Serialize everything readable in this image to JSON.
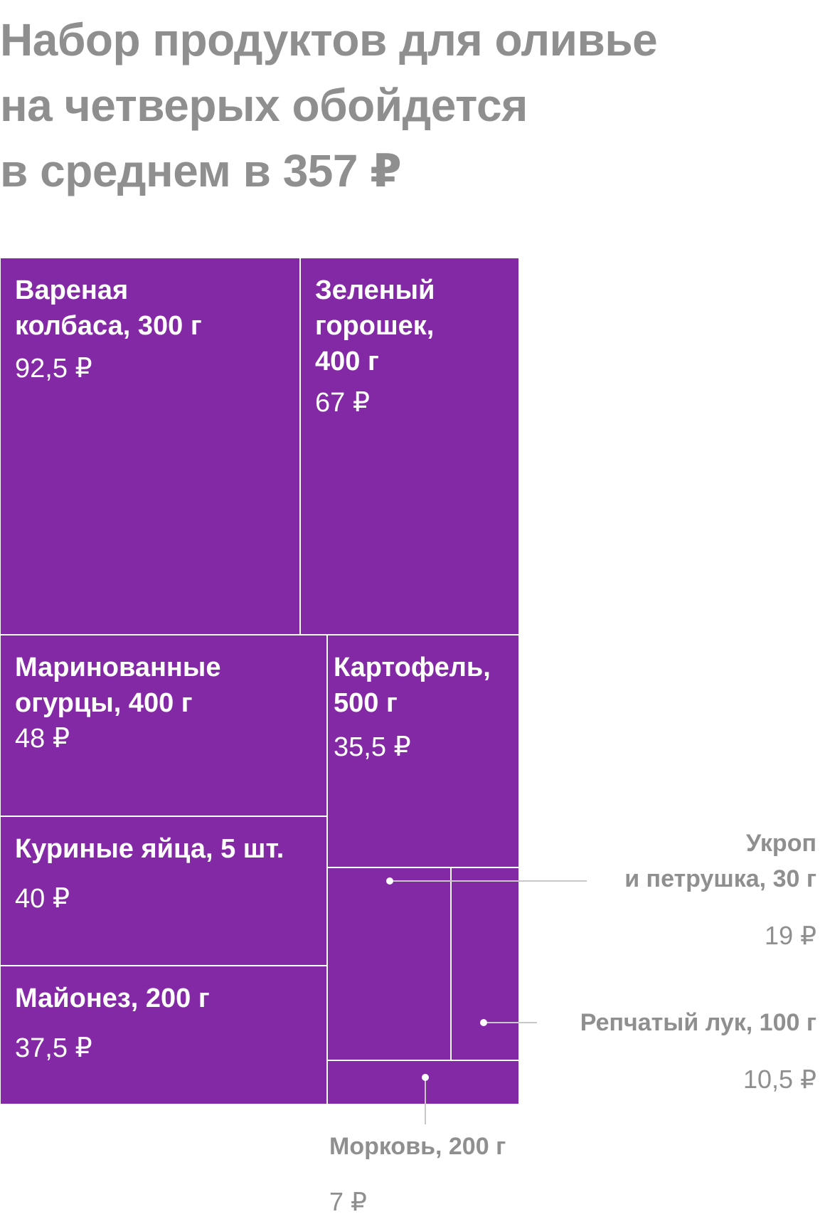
{
  "chart_data": {
    "type": "treemap",
    "title_lines": [
      "Набор продуктов для оливье",
      "на четверых обойдется",
      "в среднем в 357 ₽"
    ],
    "currency": "₽",
    "total": 357,
    "items": [
      {
        "label_lines": [
          "Вареная",
          "колбаса, 300 г"
        ],
        "value": 92.5,
        "value_text": "92,5 ₽"
      },
      {
        "label_lines": [
          "Зеленый",
          "горошек,",
          "400 г"
        ],
        "value": 67,
        "value_text": "67 ₽"
      },
      {
        "label_lines": [
          "Маринованные",
          "огурцы, 400 г"
        ],
        "value": 48,
        "value_text": "48 ₽"
      },
      {
        "label_lines": [
          "Куриные яйца, 5 шт."
        ],
        "value": 40,
        "value_text": "40 ₽"
      },
      {
        "label_lines": [
          "Майонез, 200 г"
        ],
        "value": 37.5,
        "value_text": "37,5 ₽"
      },
      {
        "label_lines": [
          "Картофель,",
          "500 г"
        ],
        "value": 35.5,
        "value_text": "35,5 ₽"
      },
      {
        "label_lines": [
          "Укроп",
          "и петрушка, 30 г"
        ],
        "value": 19,
        "value_text": "19 ₽"
      },
      {
        "label_lines": [
          "Репчатый лук, 100 г"
        ],
        "value": 10.5,
        "value_text": "10,5 ₽"
      },
      {
        "label_lines": [
          "Морковь, 200 г"
        ],
        "value": 7,
        "value_text": "7 ₽"
      }
    ],
    "colors": {
      "tile": "#8329a6",
      "tile_border": "#ffffff",
      "annotation": "#8f8f8f"
    }
  }
}
